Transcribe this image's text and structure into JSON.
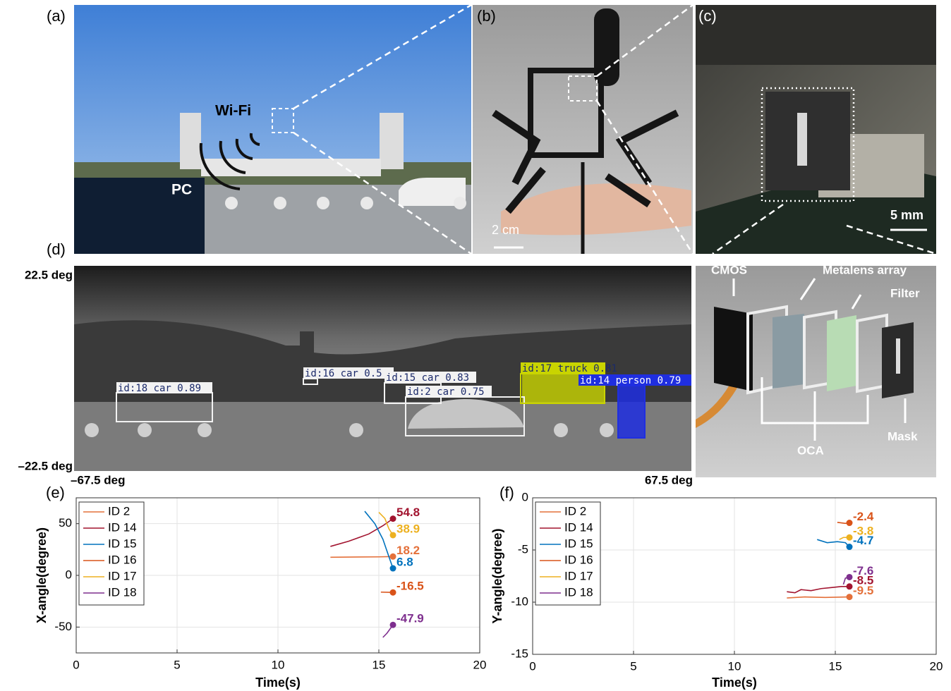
{
  "panels": {
    "a": {
      "label": "(a)",
      "wifi": "Wi-Fi",
      "pc": "PC"
    },
    "b": {
      "label": "(b)",
      "scale": "2 cm"
    },
    "c": {
      "label": "(c)",
      "scale": "5 mm"
    },
    "d": {
      "label": "(d)",
      "y_top": "22.5 deg",
      "y_bottom": "–22.5 deg",
      "x_left": "–67.5 deg",
      "x_right": "67.5 deg",
      "detections": [
        "id:18 car 0.89",
        "id:16 car 0.5",
        "id:15 car 0.83",
        "id:2 car 0.75",
        "id:17 truck 0.81",
        "id:14 person 0.79"
      ]
    },
    "diagram": {
      "cmos": "CMOS",
      "metalens": "Metalens array",
      "filter": "Filter",
      "oca": "OCA",
      "mask": "Mask"
    }
  },
  "chart_data": [
    {
      "type": "line",
      "label": "(e)",
      "x_label": "Time(s)",
      "y_label": "X-angle(degree)",
      "xlim": [
        0,
        20
      ],
      "xticks": [
        0,
        5,
        10,
        15,
        20
      ],
      "ylim": [
        -75,
        75
      ],
      "yticks": [
        -50,
        0,
        50
      ],
      "grid": true,
      "legend": "top-left",
      "series": [
        {
          "name": "ID 2",
          "color": "#e4703a",
          "x": [
            12.6,
            14,
            15,
            15.7
          ],
          "values": [
            17.5,
            17.8,
            17.9,
            18.2
          ]
        },
        {
          "name": "ID 14",
          "color": "#a2142f",
          "x": [
            12.6,
            13.5,
            14.5,
            15.2,
            15.7
          ],
          "values": [
            28,
            33,
            40,
            48,
            54.8
          ]
        },
        {
          "name": "ID 15",
          "color": "#0072bd",
          "x": [
            14.3,
            14.8,
            15.2,
            15.5,
            15.7
          ],
          "values": [
            62,
            50,
            35,
            18,
            6.8
          ]
        },
        {
          "name": "ID 16",
          "color": "#d95319",
          "x": [
            15.1,
            15.7
          ],
          "values": [
            -16.2,
            -16.5
          ]
        },
        {
          "name": "ID 17",
          "color": "#edb120",
          "x": [
            15.0,
            15.3,
            15.5,
            15.7
          ],
          "values": [
            61,
            55,
            45,
            38.9
          ]
        },
        {
          "name": "ID 18",
          "color": "#7e2f8e",
          "x": [
            15.2,
            15.4,
            15.7
          ],
          "values": [
            -60,
            -56,
            -47.9
          ]
        }
      ]
    },
    {
      "type": "line",
      "label": "(f)",
      "x_label": "Time(s)",
      "y_label": "Y-angle(degree)",
      "xlim": [
        0,
        20
      ],
      "xticks": [
        0,
        5,
        10,
        15,
        20
      ],
      "ylim": [
        -15,
        0
      ],
      "yticks": [
        -15,
        -10,
        -5,
        0
      ],
      "grid": true,
      "legend": "top-left",
      "series": [
        {
          "name": "ID 2",
          "color": "#e4703a",
          "x": [
            12.6,
            13.5,
            14.5,
            15.7
          ],
          "values": [
            -9.6,
            -9.5,
            -9.55,
            -9.5
          ]
        },
        {
          "name": "ID 14",
          "color": "#a2142f",
          "x": [
            12.6,
            13,
            13.3,
            13.8,
            14.3,
            14.8,
            15.3,
            15.7
          ],
          "values": [
            -9,
            -9.1,
            -8.8,
            -8.9,
            -8.7,
            -8.6,
            -8.5,
            -8.5
          ]
        },
        {
          "name": "ID 15",
          "color": "#0072bd",
          "x": [
            14.1,
            14.6,
            15.1,
            15.5,
            15.7
          ],
          "values": [
            -4.0,
            -4.3,
            -4.2,
            -4.3,
            -4.7
          ]
        },
        {
          "name": "ID 16",
          "color": "#d95319",
          "x": [
            15.1,
            15.5,
            15.7
          ],
          "values": [
            -2.35,
            -2.45,
            -2.4
          ]
        },
        {
          "name": "ID 17",
          "color": "#edb120",
          "x": [
            15.2,
            15.4,
            15.7
          ],
          "values": [
            -4.0,
            -3.8,
            -3.8
          ]
        },
        {
          "name": "ID 18",
          "color": "#7e2f8e",
          "x": [
            15.4,
            15.5,
            15.7
          ],
          "values": [
            -8.3,
            -7.7,
            -7.6
          ]
        }
      ]
    }
  ]
}
